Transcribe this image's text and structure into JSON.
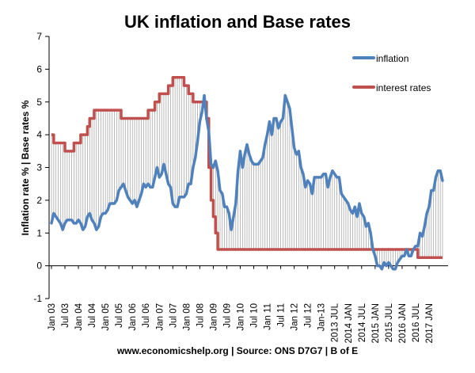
{
  "chart_data": {
    "type": "line",
    "title": "UK inflation and Base rates",
    "ylabel": "Inflation rate %  |  Base rates %",
    "xlabel": "",
    "ylim": [
      -1,
      7
    ],
    "yticks": [
      "-1",
      "0",
      "1",
      "2",
      "3",
      "4",
      "5",
      "6",
      "7"
    ],
    "grid": false,
    "legend_position": "top-right",
    "source": "www.economicshelp.org | Source: ONS D7G7 | B of E",
    "x_tick_labels": [
      {
        "x": "2003-01",
        "label": "Jan 03"
      },
      {
        "x": "2003-07",
        "label": "Jul 03"
      },
      {
        "x": "2004-01",
        "label": "Jan 04"
      },
      {
        "x": "2004-07",
        "label": "Jul 04"
      },
      {
        "x": "2005-01",
        "label": "Jan 05"
      },
      {
        "x": "2005-07",
        "label": "Jul 05"
      },
      {
        "x": "2006-01",
        "label": "Jan 06"
      },
      {
        "x": "2006-07",
        "label": "Jul 06"
      },
      {
        "x": "2007-01",
        "label": "Jan 07"
      },
      {
        "x": "2007-07",
        "label": "Jul 07"
      },
      {
        "x": "2008-01",
        "label": "Jan 08"
      },
      {
        "x": "2008-07",
        "label": "Jul 08"
      },
      {
        "x": "2009-01",
        "label": "Jan 09"
      },
      {
        "x": "2009-07",
        "label": "Jul 09"
      },
      {
        "x": "2010-01",
        "label": "Jan 10"
      },
      {
        "x": "2010-07",
        "label": "Jul 10"
      },
      {
        "x": "2011-01",
        "label": "Jan 11"
      },
      {
        "x": "2011-07",
        "label": "Jul 11"
      },
      {
        "x": "2012-01",
        "label": "Jan 12"
      },
      {
        "x": "2012-07",
        "label": "Jul 12"
      },
      {
        "x": "2013-01",
        "label": "Jan-13"
      },
      {
        "x": "2013-07",
        "label": "2013 JUL"
      },
      {
        "x": "2014-01",
        "label": "2014 JAN"
      },
      {
        "x": "2014-07",
        "label": "2014 JUL"
      },
      {
        "x": "2015-01",
        "label": "2015 JAN"
      },
      {
        "x": "2015-07",
        "label": "2015 JUL"
      },
      {
        "x": "2016-01",
        "label": "2016 JAN"
      },
      {
        "x": "2016-07",
        "label": "2016 JUL"
      },
      {
        "x": "2017-01",
        "label": "2017 JAN"
      }
    ],
    "series": [
      {
        "name": "inflation",
        "color": "#4f81bd",
        "points": [
          [
            "2003-01",
            1.3
          ],
          [
            "2003-02",
            1.6
          ],
          [
            "2003-03",
            1.5
          ],
          [
            "2003-04",
            1.4
          ],
          [
            "2003-05",
            1.3
          ],
          [
            "2003-06",
            1.1
          ],
          [
            "2003-07",
            1.3
          ],
          [
            "2003-08",
            1.4
          ],
          [
            "2003-09",
            1.4
          ],
          [
            "2003-10",
            1.4
          ],
          [
            "2003-11",
            1.3
          ],
          [
            "2003-12",
            1.3
          ],
          [
            "2004-01",
            1.4
          ],
          [
            "2004-02",
            1.3
          ],
          [
            "2004-03",
            1.1
          ],
          [
            "2004-04",
            1.2
          ],
          [
            "2004-05",
            1.5
          ],
          [
            "2004-06",
            1.6
          ],
          [
            "2004-07",
            1.4
          ],
          [
            "2004-08",
            1.3
          ],
          [
            "2004-09",
            1.1
          ],
          [
            "2004-10",
            1.2
          ],
          [
            "2004-11",
            1.5
          ],
          [
            "2004-12",
            1.6
          ],
          [
            "2005-01",
            1.6
          ],
          [
            "2005-02",
            1.7
          ],
          [
            "2005-03",
            1.9
          ],
          [
            "2005-04",
            1.9
          ],
          [
            "2005-05",
            1.9
          ],
          [
            "2005-06",
            2.0
          ],
          [
            "2005-07",
            2.3
          ],
          [
            "2005-08",
            2.4
          ],
          [
            "2005-09",
            2.5
          ],
          [
            "2005-10",
            2.3
          ],
          [
            "2005-11",
            2.1
          ],
          [
            "2005-12",
            2.0
          ],
          [
            "2006-01",
            1.9
          ],
          [
            "2006-02",
            2.0
          ],
          [
            "2006-03",
            1.8
          ],
          [
            "2006-04",
            2.0
          ],
          [
            "2006-05",
            2.2
          ],
          [
            "2006-06",
            2.5
          ],
          [
            "2006-07",
            2.4
          ],
          [
            "2006-08",
            2.5
          ],
          [
            "2006-09",
            2.4
          ],
          [
            "2006-10",
            2.4
          ],
          [
            "2006-11",
            2.7
          ],
          [
            "2006-12",
            3.0
          ],
          [
            "2007-01",
            2.7
          ],
          [
            "2007-02",
            2.8
          ],
          [
            "2007-03",
            3.1
          ],
          [
            "2007-04",
            2.8
          ],
          [
            "2007-05",
            2.5
          ],
          [
            "2007-06",
            2.4
          ],
          [
            "2007-07",
            1.9
          ],
          [
            "2007-08",
            1.8
          ],
          [
            "2007-09",
            1.8
          ],
          [
            "2007-10",
            2.1
          ],
          [
            "2007-11",
            2.1
          ],
          [
            "2007-12",
            2.1
          ],
          [
            "2008-01",
            2.2
          ],
          [
            "2008-02",
            2.5
          ],
          [
            "2008-03",
            2.5
          ],
          [
            "2008-04",
            3.0
          ],
          [
            "2008-05",
            3.3
          ],
          [
            "2008-06",
            3.8
          ],
          [
            "2008-07",
            4.4
          ],
          [
            "2008-08",
            4.7
          ],
          [
            "2008-09",
            5.2
          ],
          [
            "2008-10",
            4.5
          ],
          [
            "2008-11",
            4.1
          ],
          [
            "2008-12",
            3.1
          ],
          [
            "2009-01",
            3.0
          ],
          [
            "2009-02",
            3.2
          ],
          [
            "2009-03",
            2.9
          ],
          [
            "2009-04",
            2.3
          ],
          [
            "2009-05",
            2.2
          ],
          [
            "2009-06",
            1.8
          ],
          [
            "2009-07",
            1.8
          ],
          [
            "2009-08",
            1.6
          ],
          [
            "2009-09",
            1.1
          ],
          [
            "2009-10",
            1.5
          ],
          [
            "2009-11",
            1.9
          ],
          [
            "2009-12",
            2.9
          ],
          [
            "2010-01",
            3.5
          ],
          [
            "2010-02",
            3.0
          ],
          [
            "2010-03",
            3.4
          ],
          [
            "2010-04",
            3.7
          ],
          [
            "2010-05",
            3.4
          ],
          [
            "2010-06",
            3.2
          ],
          [
            "2010-07",
            3.1
          ],
          [
            "2010-08",
            3.1
          ],
          [
            "2010-09",
            3.1
          ],
          [
            "2010-10",
            3.2
          ],
          [
            "2010-11",
            3.3
          ],
          [
            "2010-12",
            3.7
          ],
          [
            "2011-01",
            4.0
          ],
          [
            "2011-02",
            4.4
          ],
          [
            "2011-03",
            4.0
          ],
          [
            "2011-04",
            4.5
          ],
          [
            "2011-05",
            4.5
          ],
          [
            "2011-06",
            4.2
          ],
          [
            "2011-07",
            4.4
          ],
          [
            "2011-08",
            4.5
          ],
          [
            "2011-09",
            5.2
          ],
          [
            "2011-10",
            5.0
          ],
          [
            "2011-11",
            4.8
          ],
          [
            "2011-12",
            4.2
          ],
          [
            "2012-01",
            3.6
          ],
          [
            "2012-02",
            3.4
          ],
          [
            "2012-03",
            3.5
          ],
          [
            "2012-04",
            3.0
          ],
          [
            "2012-05",
            2.8
          ],
          [
            "2012-06",
            2.4
          ],
          [
            "2012-07",
            2.6
          ],
          [
            "2012-08",
            2.5
          ],
          [
            "2012-09",
            2.2
          ],
          [
            "2012-10",
            2.7
          ],
          [
            "2012-11",
            2.7
          ],
          [
            "2012-12",
            2.7
          ],
          [
            "2013-01",
            2.7
          ],
          [
            "2013-02",
            2.8
          ],
          [
            "2013-03",
            2.8
          ],
          [
            "2013-04",
            2.4
          ],
          [
            "2013-05",
            2.7
          ],
          [
            "2013-06",
            2.9
          ],
          [
            "2013-07",
            2.8
          ],
          [
            "2013-08",
            2.7
          ],
          [
            "2013-09",
            2.7
          ],
          [
            "2013-10",
            2.2
          ],
          [
            "2013-11",
            2.1
          ],
          [
            "2013-12",
            2.0
          ],
          [
            "2014-01",
            1.9
          ],
          [
            "2014-02",
            1.7
          ],
          [
            "2014-03",
            1.6
          ],
          [
            "2014-04",
            1.8
          ],
          [
            "2014-05",
            1.5
          ],
          [
            "2014-06",
            1.9
          ],
          [
            "2014-07",
            1.6
          ],
          [
            "2014-08",
            1.5
          ],
          [
            "2014-09",
            1.2
          ],
          [
            "2014-10",
            1.3
          ],
          [
            "2014-11",
            1.0
          ],
          [
            "2014-12",
            0.5
          ],
          [
            "2015-01",
            0.3
          ],
          [
            "2015-02",
            0.0
          ],
          [
            "2015-03",
            0.0
          ],
          [
            "2015-04",
            -0.1
          ],
          [
            "2015-05",
            0.1
          ],
          [
            "2015-06",
            0.0
          ],
          [
            "2015-07",
            0.1
          ],
          [
            "2015-08",
            0.0
          ],
          [
            "2015-09",
            -0.1
          ],
          [
            "2015-10",
            -0.1
          ],
          [
            "2015-11",
            0.1
          ],
          [
            "2015-12",
            0.2
          ],
          [
            "2016-01",
            0.3
          ],
          [
            "2016-02",
            0.3
          ],
          [
            "2016-03",
            0.5
          ],
          [
            "2016-04",
            0.3
          ],
          [
            "2016-05",
            0.3
          ],
          [
            "2016-06",
            0.5
          ],
          [
            "2016-07",
            0.6
          ],
          [
            "2016-08",
            0.6
          ],
          [
            "2016-09",
            1.0
          ],
          [
            "2016-10",
            0.9
          ],
          [
            "2016-11",
            1.2
          ],
          [
            "2016-12",
            1.6
          ],
          [
            "2017-01",
            1.8
          ],
          [
            "2017-02",
            2.3
          ],
          [
            "2017-03",
            2.3
          ],
          [
            "2017-04",
            2.7
          ],
          [
            "2017-05",
            2.9
          ],
          [
            "2017-06",
            2.9
          ],
          [
            "2017-07",
            2.6
          ]
        ]
      },
      {
        "name": "interest rates",
        "color": "#c0504d",
        "points": [
          [
            "2003-01",
            4.0
          ],
          [
            "2003-02",
            3.75
          ],
          [
            "2003-06",
            3.75
          ],
          [
            "2003-07",
            3.5
          ],
          [
            "2003-10",
            3.5
          ],
          [
            "2003-11",
            3.75
          ],
          [
            "2004-01",
            3.75
          ],
          [
            "2004-02",
            4.0
          ],
          [
            "2004-04",
            4.0
          ],
          [
            "2004-05",
            4.25
          ],
          [
            "2004-06",
            4.5
          ],
          [
            "2004-08",
            4.75
          ],
          [
            "2005-07",
            4.75
          ],
          [
            "2005-08",
            4.5
          ],
          [
            "2006-07",
            4.5
          ],
          [
            "2006-08",
            4.75
          ],
          [
            "2006-10",
            4.75
          ],
          [
            "2006-11",
            5.0
          ],
          [
            "2006-12",
            5.0
          ],
          [
            "2007-01",
            5.25
          ],
          [
            "2007-04",
            5.25
          ],
          [
            "2007-05",
            5.5
          ],
          [
            "2007-06",
            5.5
          ],
          [
            "2007-07",
            5.75
          ],
          [
            "2007-11",
            5.75
          ],
          [
            "2007-12",
            5.5
          ],
          [
            "2008-01",
            5.5
          ],
          [
            "2008-02",
            5.25
          ],
          [
            "2008-03",
            5.25
          ],
          [
            "2008-04",
            5.0
          ],
          [
            "2008-09",
            5.0
          ],
          [
            "2008-10",
            4.5
          ],
          [
            "2008-11",
            3.0
          ],
          [
            "2008-12",
            2.0
          ],
          [
            "2009-01",
            1.5
          ],
          [
            "2009-02",
            1.0
          ],
          [
            "2009-03",
            0.5
          ],
          [
            "2016-07",
            0.5
          ],
          [
            "2016-08",
            0.25
          ],
          [
            "2017-07",
            0.25
          ]
        ]
      }
    ]
  }
}
